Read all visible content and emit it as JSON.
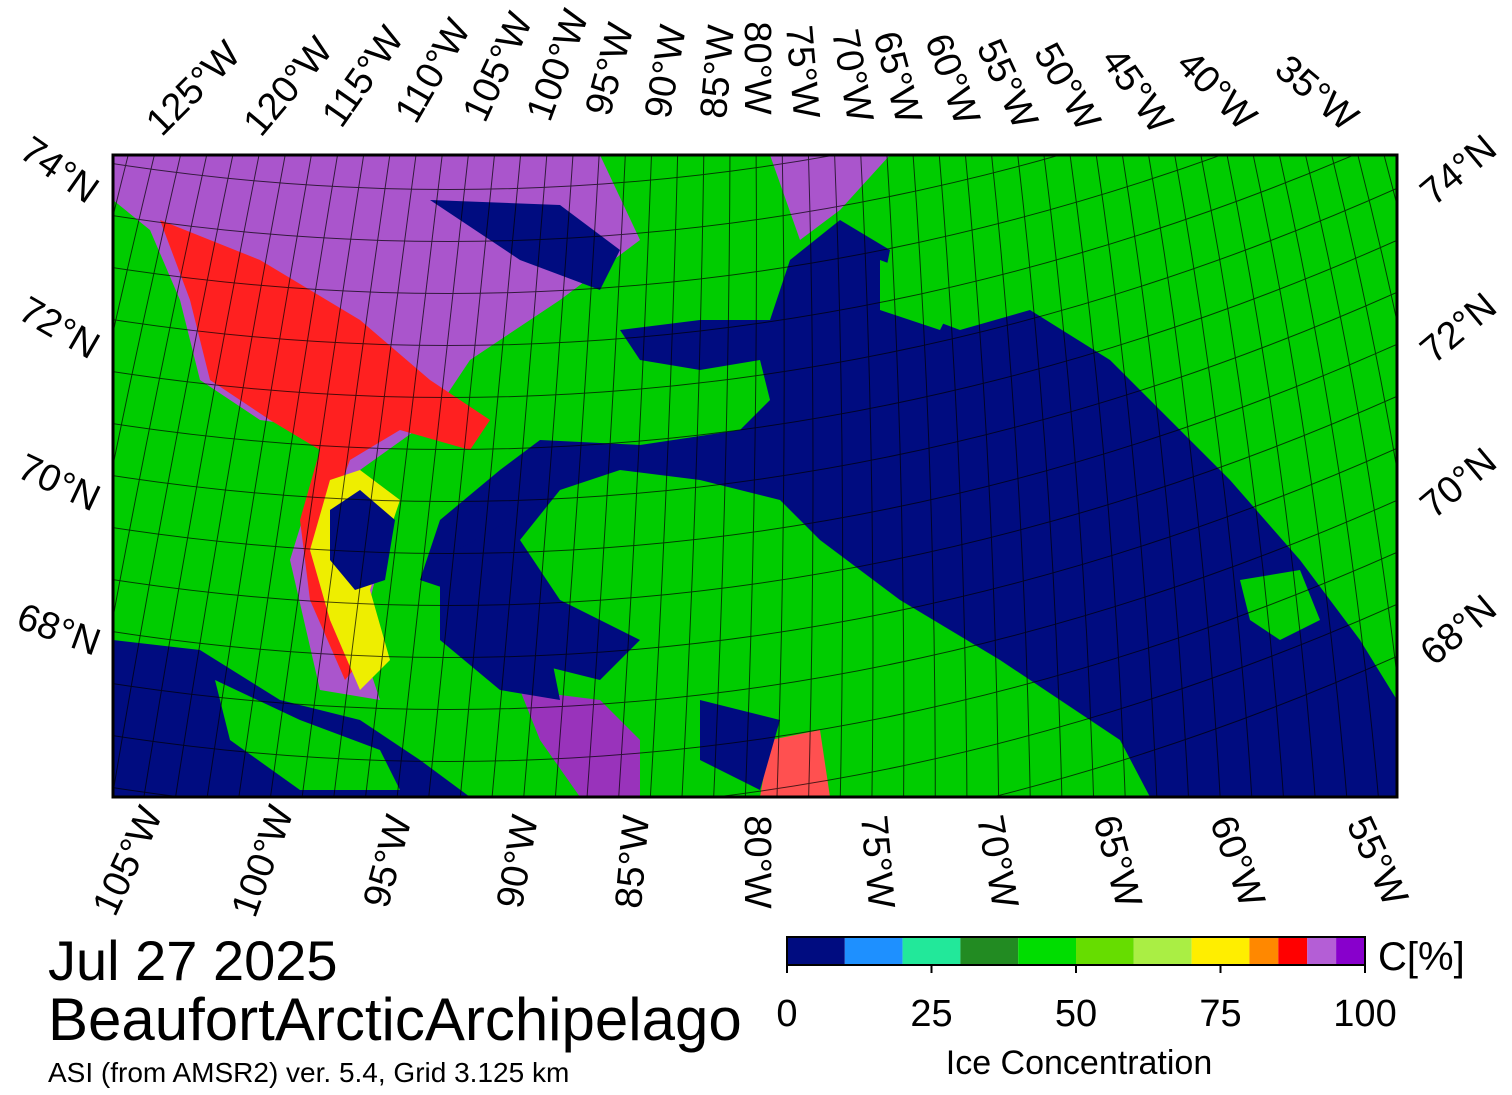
{
  "map": {
    "top_labels": [
      "125°W",
      "120°W",
      "115°W",
      "110°W",
      "105°W",
      "100°W",
      "95°W",
      "90°W",
      "85°W",
      "80°W",
      "75°W",
      "70°W",
      "65°W",
      "60°W",
      "55°W",
      "50°W",
      "45°W",
      "40°W",
      "35°W"
    ],
    "bottom_labels": [
      "105°W",
      "100°W",
      "95°W",
      "90°W",
      "85°W",
      "80°W",
      "75°W",
      "70°W",
      "65°W",
      "60°W",
      "55°W"
    ],
    "left_labels": [
      "74°N",
      "72°N",
      "70°N",
      "68°N"
    ],
    "right_labels": [
      "74°N",
      "72°N",
      "70°N",
      "68°N"
    ]
  },
  "date": "Jul 27 2025",
  "region": "BeaufortArcticArchipelago",
  "source": "ASI (from AMSR2) ver. 5.4,  Grid 3.125 km",
  "colorbar": {
    "bounds": [
      0,
      10,
      20,
      30,
      40,
      50,
      60,
      70,
      80,
      85,
      90,
      95,
      100
    ],
    "colors": [
      "#000c80",
      "#1e90ff",
      "#22e89a",
      "#228b22",
      "#00dd00",
      "#66dd00",
      "#aaee44",
      "#ffee00",
      "#ff8800",
      "#ff0000",
      "#b45ed6",
      "#8800cc"
    ],
    "ticks": [
      0,
      25,
      50,
      75,
      100
    ],
    "range": [
      0,
      100
    ],
    "unit": "C[%]",
    "label": "Ice Concentration"
  }
}
